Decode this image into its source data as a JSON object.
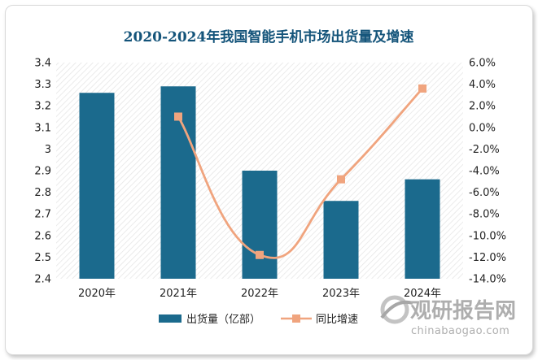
{
  "chart_data": {
    "type": "bar",
    "title": "2020-2024年我国智能手机市场出货量及增速",
    "categories": [
      "2020年",
      "2021年",
      "2022年",
      "2023年",
      "2024年"
    ],
    "series": [
      {
        "name": "出货量（亿部）",
        "kind": "bar",
        "axis": "left",
        "values": [
          3.26,
          3.29,
          2.9,
          2.76,
          2.86
        ]
      },
      {
        "name": "同比增速",
        "kind": "line",
        "axis": "right",
        "values": [
          null,
          1.0,
          -11.8,
          -4.8,
          3.6
        ]
      }
    ],
    "y_left": {
      "min": 2.4,
      "max": 3.4,
      "ticks": [
        "2.4",
        "2.5",
        "2.6",
        "2.7",
        "2.8",
        "2.9",
        "3",
        "3.1",
        "3.2",
        "3.3",
        "3.4"
      ]
    },
    "y_right": {
      "min": -14,
      "max": 6,
      "ticks": [
        "-14.0%",
        "-12.0%",
        "-10.0%",
        "-8.0%",
        "-6.0%",
        "-4.0%",
        "-2.0%",
        "0.0%",
        "2.0%",
        "4.0%",
        "6.0%"
      ]
    },
    "grid": false,
    "legend_position": "bottom",
    "colors": {
      "bar": "#1b6a8d",
      "line": "#f0a47e",
      "title": "#14547a",
      "axis_text": "#222222"
    }
  },
  "watermark": {
    "brand": "观研报告网",
    "url": "chinabaogao.com"
  }
}
